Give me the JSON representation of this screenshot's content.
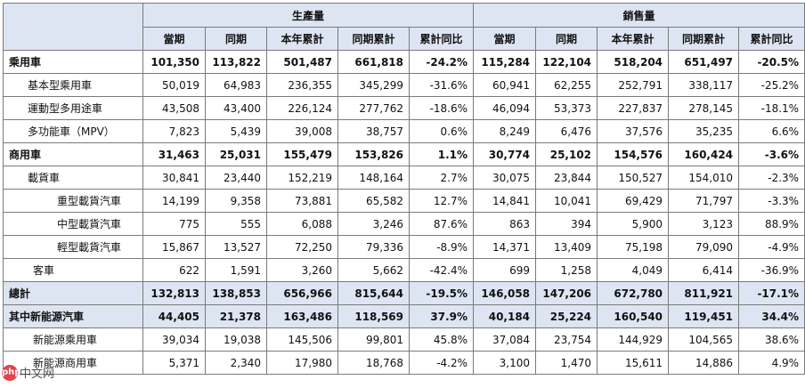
{
  "header": {
    "production_group": "生產量",
    "sales_group": "銷售量",
    "columns": [
      "當期",
      "同期",
      "本年累計",
      "同期累計",
      "累計同比",
      "當期",
      "同期",
      "本年累計",
      "同期累計",
      "累計同比"
    ]
  },
  "rows": [
    {
      "label": "乘用車",
      "cells": [
        "101,350",
        "113,822",
        "501,487",
        "661,818",
        "-24.2%",
        "115,284",
        "122,104",
        "518,204",
        "651,497",
        "-20.5%"
      ]
    },
    {
      "label": "基本型乘用車",
      "cells": [
        "50,019",
        "64,983",
        "236,355",
        "345,299",
        "-31.6%",
        "60,941",
        "62,255",
        "252,791",
        "338,117",
        "-25.2%"
      ]
    },
    {
      "label": "運動型多用途車",
      "cells": [
        "43,508",
        "43,400",
        "226,124",
        "277,762",
        "-18.6%",
        "46,094",
        "53,373",
        "227,837",
        "278,145",
        "-18.1%"
      ]
    },
    {
      "label": "多功能車（MPV）",
      "cells": [
        "7,823",
        "5,439",
        "39,008",
        "38,757",
        "0.6%",
        "8,249",
        "6,476",
        "37,576",
        "35,235",
        "6.6%"
      ]
    },
    {
      "label": "商用車",
      "cells": [
        "31,463",
        "25,031",
        "155,479",
        "153,826",
        "1.1%",
        "30,774",
        "25,102",
        "154,576",
        "160,424",
        "-3.6%"
      ]
    },
    {
      "label": "載貨車",
      "cells": [
        "30,841",
        "23,440",
        "152,219",
        "148,164",
        "2.7%",
        "30,075",
        "23,844",
        "150,527",
        "154,010",
        "-2.3%"
      ]
    },
    {
      "label": "重型載貨汽車",
      "cells": [
        "14,199",
        "9,358",
        "73,881",
        "65,582",
        "12.7%",
        "14,841",
        "10,041",
        "69,429",
        "71,797",
        "-3.3%"
      ]
    },
    {
      "label": "中型載貨汽車",
      "cells": [
        "775",
        "555",
        "6,088",
        "3,246",
        "87.6%",
        "863",
        "394",
        "5,900",
        "3,123",
        "88.9%"
      ]
    },
    {
      "label": "輕型載貨汽車",
      "cells": [
        "15,867",
        "13,527",
        "72,250",
        "79,336",
        "-8.9%",
        "14,371",
        "13,409",
        "75,198",
        "79,090",
        "-4.9%"
      ]
    },
    {
      "label": "客車",
      "cells": [
        "622",
        "1,591",
        "3,260",
        "5,662",
        "-42.4%",
        "699",
        "1,258",
        "4,049",
        "6,414",
        "-36.9%"
      ]
    },
    {
      "label": "總計",
      "cells": [
        "132,813",
        "138,853",
        "656,966",
        "815,644",
        "-19.5%",
        "146,058",
        "147,206",
        "672,780",
        "811,921",
        "-17.1%"
      ]
    },
    {
      "label": "其中新能源汽車",
      "cells": [
        "44,405",
        "21,378",
        "163,486",
        "118,569",
        "37.9%",
        "40,184",
        "25,224",
        "160,540",
        "119,451",
        "34.4%"
      ]
    },
    {
      "label": "新能源乘用車",
      "cells": [
        "39,034",
        "19,038",
        "145,506",
        "99,801",
        "45.8%",
        "37,084",
        "23,754",
        "144,929",
        "104,565",
        "38.6%"
      ]
    },
    {
      "label": "新能源商用車",
      "cells": [
        "5,371",
        "2,340",
        "17,980",
        "18,768",
        "-4.2%",
        "3,100",
        "1,470",
        "15,611",
        "14,886",
        "4.9%"
      ]
    }
  ],
  "watermark": {
    "logo": "php",
    "text": "中文网"
  },
  "colors": {
    "header_bg": "#dde5f2",
    "border": "#7a7a7a",
    "watermark": "#d9262c"
  }
}
